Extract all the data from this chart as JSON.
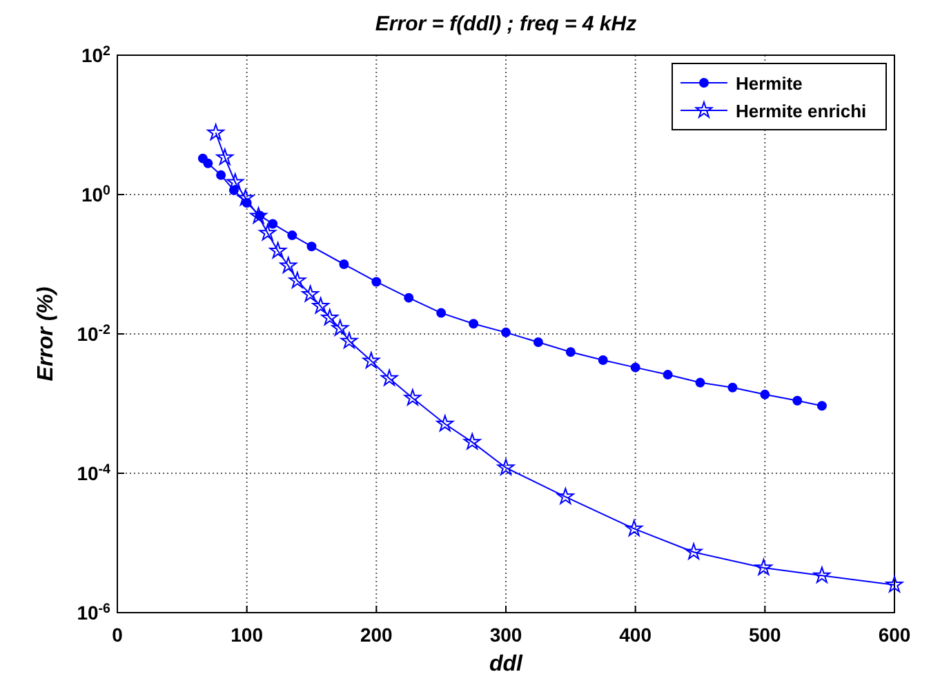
{
  "chart_data": {
    "type": "line",
    "title": "Error = f(ddl) ; freq = 4 kHz",
    "xlabel": "ddl",
    "ylabel": "Error (%)",
    "log": "y",
    "grid": true,
    "legend": "top right",
    "line_style": "solid",
    "xlim": [
      0,
      600
    ],
    "xticks": [
      0,
      100,
      200,
      300,
      400,
      500,
      600
    ],
    "ylim": [
      1e-06,
      100
    ],
    "yticks": [
      {
        "value": 1e-06,
        "label": "10$^{-6}$"
      },
      {
        "value": 0.0001,
        "label": "10$^{-4}$"
      },
      {
        "value": 0.01,
        "label": "10$^{-2}$"
      },
      {
        "value": 1,
        "label": "10$^{0}$"
      },
      {
        "value": 100,
        "label": "10$^{2}$"
      }
    ],
    "series": [
      {
        "name": "Hermite",
        "color": "#0000ff",
        "marker": "circle",
        "x": [
          66,
          70,
          80,
          90,
          100,
          110,
          120,
          135,
          150,
          175,
          200,
          225,
          250,
          275,
          300,
          325,
          350,
          375,
          400,
          425,
          450,
          475,
          500,
          525,
          544
        ],
        "values": [
          3.3,
          2.8,
          1.9,
          1.15,
          0.76,
          0.5,
          0.38,
          0.26,
          0.18,
          0.1,
          0.056,
          0.033,
          0.02,
          0.014,
          0.0105,
          0.0076,
          0.0055,
          0.0042,
          0.0033,
          0.0026,
          0.002,
          0.0017,
          0.00135,
          0.0011,
          0.00093
        ]
      },
      {
        "name": "Hermite enrichi",
        "color": "#0000ff",
        "marker": "star",
        "x": [
          76,
          83,
          91,
          99,
          109,
          116,
          124,
          132,
          139,
          149,
          157,
          164,
          172,
          179,
          196,
          210,
          228,
          253,
          274,
          300,
          346,
          399,
          445,
          499,
          544,
          600
        ],
        "values": [
          7.7,
          3.4,
          1.5,
          0.89,
          0.49,
          0.28,
          0.155,
          0.095,
          0.058,
          0.037,
          0.025,
          0.017,
          0.012,
          0.0079,
          0.0041,
          0.0023,
          0.0012,
          0.00051,
          0.00028,
          0.00012,
          4.6e-05,
          1.6e-05,
          7.4e-06,
          4.4e-06,
          3.4e-06,
          2.5e-06
        ]
      }
    ]
  }
}
